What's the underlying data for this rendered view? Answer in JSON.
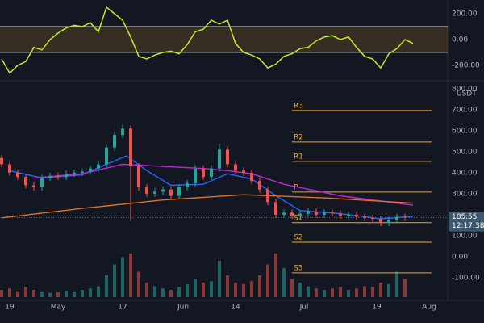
{
  "chart_data": [
    {
      "type": "candlestick",
      "x": [
        0,
        2,
        4,
        6,
        8,
        10,
        12,
        14,
        16,
        18,
        20,
        22,
        24,
        26,
        28,
        30,
        32,
        34,
        36,
        38,
        40,
        42,
        44,
        46,
        48,
        50,
        52,
        54,
        56,
        58,
        60,
        62,
        64,
        66,
        68,
        70,
        72,
        74,
        76,
        78,
        80,
        82,
        84,
        86,
        88,
        90,
        92,
        94,
        96,
        98,
        100
      ],
      "open": [
        470,
        440,
        400,
        380,
        340,
        330,
        375,
        385,
        380,
        395,
        400,
        405,
        420,
        440,
        520,
        580,
        610,
        430,
        330,
        300,
        310,
        320,
        290,
        330,
        350,
        420,
        380,
        420,
        510,
        440,
        410,
        400,
        360,
        320,
        260,
        200,
        210,
        195,
        205,
        215,
        200,
        210,
        205,
        195,
        200,
        190,
        185,
        180,
        160,
        175,
        190
      ],
      "high": [
        485,
        455,
        415,
        395,
        355,
        390,
        400,
        400,
        410,
        415,
        420,
        435,
        455,
        535,
        595,
        630,
        625,
        445,
        345,
        325,
        335,
        335,
        345,
        365,
        435,
        435,
        435,
        540,
        525,
        455,
        425,
        415,
        375,
        335,
        275,
        225,
        225,
        220,
        230,
        230,
        225,
        225,
        220,
        215,
        215,
        205,
        200,
        195,
        190,
        205,
        205
      ],
      "low": [
        425,
        385,
        365,
        325,
        315,
        315,
        360,
        365,
        365,
        380,
        385,
        390,
        405,
        425,
        505,
        565,
        170,
        315,
        285,
        285,
        295,
        275,
        275,
        315,
        335,
        365,
        365,
        405,
        425,
        395,
        385,
        345,
        305,
        245,
        185,
        185,
        180,
        180,
        190,
        185,
        185,
        190,
        180,
        180,
        175,
        170,
        165,
        145,
        145,
        160,
        171
      ],
      "close": [
        440,
        400,
        380,
        340,
        330,
        375,
        385,
        380,
        395,
        400,
        405,
        420,
        440,
        520,
        580,
        610,
        430,
        330,
        300,
        310,
        320,
        290,
        330,
        350,
        420,
        380,
        420,
        510,
        440,
        410,
        400,
        360,
        320,
        260,
        200,
        210,
        195,
        205,
        215,
        200,
        210,
        205,
        195,
        200,
        190,
        185,
        180,
        160,
        175,
        190,
        186
      ],
      "volume": [
        10,
        12,
        8,
        14,
        10,
        8,
        6,
        7,
        9,
        8,
        10,
        12,
        15,
        30,
        45,
        55,
        60,
        35,
        20,
        15,
        12,
        10,
        14,
        18,
        25,
        20,
        22,
        50,
        30,
        20,
        18,
        22,
        30,
        45,
        60,
        40,
        25,
        20,
        15,
        12,
        10,
        12,
        14,
        10,
        12,
        15,
        14,
        20,
        18,
        35,
        25
      ],
      "up_color": "#26a69a",
      "down_color": "#ef5350",
      "ma": [
        {
          "color": "#2962ff",
          "x": [
            2,
            10,
            20,
            26,
            31,
            36,
            42,
            50,
            56,
            62,
            68,
            74,
            84,
            94,
            102
          ],
          "values": [
            410,
            375,
            390,
            440,
            480,
            410,
            340,
            345,
            395,
            370,
            290,
            220,
            205,
            180,
            192
          ]
        },
        {
          "color": "#c026d3",
          "x": [
            8,
            20,
            30,
            40,
            50,
            56,
            62,
            70,
            84,
            94,
            102
          ],
          "values": [
            375,
            395,
            440,
            430,
            420,
            410,
            395,
            345,
            290,
            265,
            245
          ]
        },
        {
          "color": "#e0702a",
          "x": [
            0,
            20,
            40,
            60,
            80,
            102
          ],
          "values": [
            185,
            230,
            270,
            295,
            280,
            255
          ]
        }
      ],
      "pivots": [
        {
          "name": "R3",
          "value": 696
        },
        {
          "name": "R2",
          "value": 546
        },
        {
          "name": "R1",
          "value": 454
        },
        {
          "name": "P",
          "value": 308
        },
        {
          "name": "S1",
          "value": 162
        },
        {
          "name": "S2",
          "value": 69
        },
        {
          "name": "S3",
          "value": -77
        }
      ],
      "pivot_color": "#f5a623",
      "pivot_start": 72,
      "last_price": 185.55,
      "last_price_label": "185.55",
      "countdown": "12:17:38",
      "currency": "USDT",
      "xlim": [
        -0.4,
        110.6
      ],
      "xticks": [
        {
          "value": 2,
          "label": "19"
        },
        {
          "value": 14,
          "label": "May"
        },
        {
          "value": 30,
          "label": "17"
        },
        {
          "value": 45,
          "label": "Jun"
        },
        {
          "value": 58,
          "label": "14"
        },
        {
          "value": 75,
          "label": "Jul"
        },
        {
          "value": 93,
          "label": "19"
        },
        {
          "value": 106,
          "label": "Aug"
        }
      ],
      "ylim": [
        -208,
        838
      ],
      "yticks": [
        {
          "value": 800,
          "label": "800.00"
        },
        {
          "value": 700,
          "label": "700.00"
        },
        {
          "value": 600,
          "label": "600.00"
        },
        {
          "value": 500,
          "label": "500.00"
        },
        {
          "value": 400,
          "label": "400.00"
        },
        {
          "value": 300,
          "label": "300.00"
        },
        {
          "value": 200,
          "label": "200.00"
        },
        {
          "value": 100,
          "label": "100.00"
        },
        {
          "value": 0,
          "label": "0.00"
        },
        {
          "value": -100,
          "label": "-100.00"
        }
      ]
    },
    {
      "type": "line",
      "x": [
        0,
        2,
        4,
        6,
        8,
        10,
        12,
        14,
        16,
        18,
        20,
        22,
        24,
        26,
        28,
        30,
        32,
        34,
        36,
        38,
        40,
        42,
        44,
        46,
        48,
        50,
        52,
        54,
        56,
        58,
        60,
        62,
        64,
        66,
        68,
        70,
        72,
        74,
        76,
        78,
        80,
        82,
        84,
        86,
        88,
        90,
        92,
        94,
        96,
        98,
        100,
        102
      ],
      "values": [
        -150,
        -260,
        -200,
        -170,
        -60,
        -80,
        0,
        50,
        90,
        110,
        100,
        130,
        60,
        250,
        200,
        150,
        20,
        -130,
        -150,
        -120,
        -100,
        -90,
        -110,
        -40,
        60,
        80,
        150,
        120,
        150,
        -30,
        -100,
        -120,
        -150,
        -220,
        -190,
        -130,
        -110,
        -70,
        -60,
        -10,
        20,
        30,
        0,
        20,
        -60,
        -130,
        -150,
        -220,
        -110,
        -70,
        0,
        -30
      ],
      "color": "#c6e82a",
      "band": [
        -100,
        100
      ],
      "ylim": [
        -319,
        306
      ],
      "yticks": [
        {
          "value": 200,
          "label": "200.00"
        },
        {
          "value": 0,
          "label": "0.00"
        },
        {
          "value": -200,
          "label": "-200.00"
        }
      ]
    }
  ]
}
